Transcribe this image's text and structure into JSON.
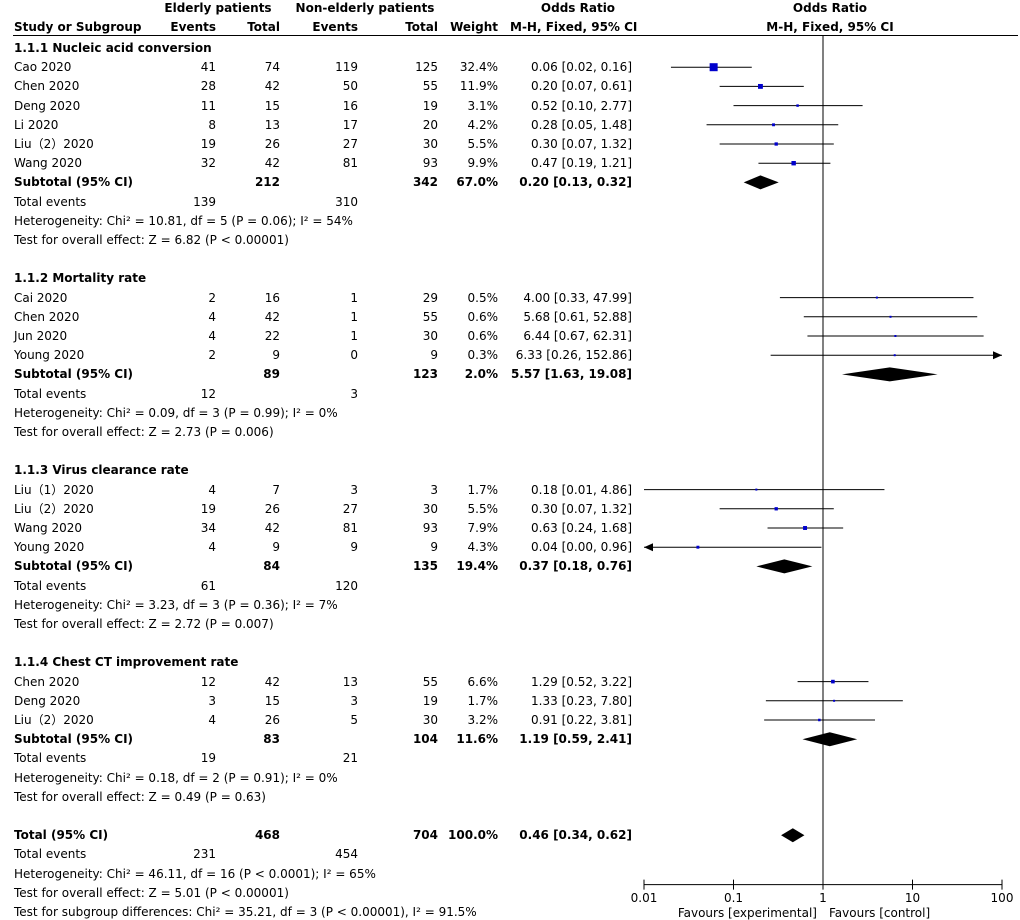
{
  "headers": {
    "study": "Study or Subgroup",
    "group1": "Elderly patients",
    "group2": "Non-elderly patients",
    "events": "Events",
    "total": "Total",
    "weight": "Weight",
    "or_title": "Odds Ratio",
    "or_method": "M-H, Fixed, 95% CI"
  },
  "chart_data": {
    "type": "forest",
    "scale": "log",
    "xlim": [
      0.01,
      100
    ],
    "xticks": [
      "0.01",
      "0.1",
      "1",
      "10",
      "100"
    ],
    "xtick_values": [
      0.01,
      0.1,
      1,
      10,
      100
    ],
    "favours_left": "Favours [experimental]",
    "favours_right": "Favours [control]",
    "groups": [
      {
        "title": "1.1.1 Nucleic acid conversion",
        "studies": [
          {
            "name": "Cao 2020",
            "e1": "41",
            "t1": "74",
            "e2": "119",
            "t2": "125",
            "weight": "32.4%",
            "ci_text": "0.06 [0.02, 0.16]",
            "or": 0.06,
            "lo": 0.02,
            "hi": 0.16,
            "w": 32.4
          },
          {
            "name": "Chen 2020",
            "e1": "28",
            "t1": "42",
            "e2": "50",
            "t2": "55",
            "weight": "11.9%",
            "ci_text": "0.20 [0.07, 0.61]",
            "or": 0.2,
            "lo": 0.07,
            "hi": 0.61,
            "w": 11.9
          },
          {
            "name": "Deng 2020",
            "e1": "11",
            "t1": "15",
            "e2": "16",
            "t2": "19",
            "weight": "3.1%",
            "ci_text": "0.52 [0.10, 2.77]",
            "or": 0.52,
            "lo": 0.1,
            "hi": 2.77,
            "w": 3.1
          },
          {
            "name": "Li 2020",
            "e1": "8",
            "t1": "13",
            "e2": "17",
            "t2": "20",
            "weight": "4.2%",
            "ci_text": "0.28 [0.05, 1.48]",
            "or": 0.28,
            "lo": 0.05,
            "hi": 1.48,
            "w": 4.2
          },
          {
            "name": "Liu（2）2020",
            "e1": "19",
            "t1": "26",
            "e2": "27",
            "t2": "30",
            "weight": "5.5%",
            "ci_text": "0.30 [0.07, 1.32]",
            "or": 0.3,
            "lo": 0.07,
            "hi": 1.32,
            "w": 5.5
          },
          {
            "name": "Wang 2020",
            "e1": "32",
            "t1": "42",
            "e2": "81",
            "t2": "93",
            "weight": "9.9%",
            "ci_text": "0.47 [0.19, 1.21]",
            "or": 0.47,
            "lo": 0.19,
            "hi": 1.21,
            "w": 9.9
          }
        ],
        "subtotal": {
          "label": "Subtotal (95% CI)",
          "t1": "212",
          "t2": "342",
          "weight": "67.0%",
          "ci_text": "0.20 [0.13, 0.32]",
          "or": 0.2,
          "lo": 0.13,
          "hi": 0.32
        },
        "events_label": "Total events",
        "events1": "139",
        "events2": "310",
        "heterogeneity": "Heterogeneity: Chi² = 10.81, df = 5 (P = 0.06); I² = 54%",
        "overall": "Test for overall effect: Z = 6.82 (P < 0.00001)"
      },
      {
        "title": "1.1.2 Mortality rate",
        "studies": [
          {
            "name": "Cai 2020",
            "e1": "2",
            "t1": "16",
            "e2": "1",
            "t2": "29",
            "weight": "0.5%",
            "ci_text": "4.00 [0.33, 47.99]",
            "or": 4.0,
            "lo": 0.33,
            "hi": 47.99,
            "w": 0.5
          },
          {
            "name": "Chen 2020",
            "e1": "4",
            "t1": "42",
            "e2": "1",
            "t2": "55",
            "weight": "0.6%",
            "ci_text": "5.68 [0.61, 52.88]",
            "or": 5.68,
            "lo": 0.61,
            "hi": 52.88,
            "w": 0.6
          },
          {
            "name": "Jun 2020",
            "e1": "4",
            "t1": "22",
            "e2": "1",
            "t2": "30",
            "weight": "0.6%",
            "ci_text": "6.44 [0.67, 62.31]",
            "or": 6.44,
            "lo": 0.67,
            "hi": 62.31,
            "w": 0.6
          },
          {
            "name": "Young 2020",
            "e1": "2",
            "t1": "9",
            "e2": "0",
            "t2": "9",
            "weight": "0.3%",
            "ci_text": "6.33 [0.26, 152.86]",
            "or": 6.33,
            "lo": 0.26,
            "hi": 152.86,
            "w": 0.3
          }
        ],
        "subtotal": {
          "label": "Subtotal (95% CI)",
          "t1": "89",
          "t2": "123",
          "weight": "2.0%",
          "ci_text": "5.57 [1.63, 19.08]",
          "or": 5.57,
          "lo": 1.63,
          "hi": 19.08
        },
        "events_label": "Total events",
        "events1": "12",
        "events2": "3",
        "heterogeneity": "Heterogeneity: Chi² = 0.09, df = 3 (P = 0.99); I² = 0%",
        "overall": "Test for overall effect: Z = 2.73 (P = 0.006)"
      },
      {
        "title": "1.1.3 Virus clearance rate",
        "studies": [
          {
            "name": "Liu（1）2020",
            "e1": "4",
            "t1": "7",
            "e2": "3",
            "t2": "3",
            "weight": "1.7%",
            "ci_text": "0.18 [0.01, 4.86]",
            "or": 0.18,
            "lo": 0.01,
            "hi": 4.86,
            "w": 1.7
          },
          {
            "name": "Liu（2）2020",
            "e1": "19",
            "t1": "26",
            "e2": "27",
            "t2": "30",
            "weight": "5.5%",
            "ci_text": "0.30 [0.07, 1.32]",
            "or": 0.3,
            "lo": 0.07,
            "hi": 1.32,
            "w": 5.5
          },
          {
            "name": "Wang 2020",
            "e1": "34",
            "t1": "42",
            "e2": "81",
            "t2": "93",
            "weight": "7.9%",
            "ci_text": "0.63 [0.24, 1.68]",
            "or": 0.63,
            "lo": 0.24,
            "hi": 1.68,
            "w": 7.9
          },
          {
            "name": "Young 2020",
            "e1": "4",
            "t1": "9",
            "e2": "9",
            "t2": "9",
            "weight": "4.3%",
            "ci_text": "0.04 [0.00, 0.96]",
            "or": 0.04,
            "lo": 0.001,
            "hi": 0.96,
            "w": 4.3
          }
        ],
        "subtotal": {
          "label": "Subtotal (95% CI)",
          "t1": "84",
          "t2": "135",
          "weight": "19.4%",
          "ci_text": "0.37 [0.18, 0.76]",
          "or": 0.37,
          "lo": 0.18,
          "hi": 0.76
        },
        "events_label": "Total events",
        "events1": "61",
        "events2": "120",
        "heterogeneity": "Heterogeneity: Chi² = 3.23, df = 3 (P = 0.36); I² = 7%",
        "overall": "Test for overall effect: Z = 2.72 (P = 0.007)"
      },
      {
        "title": "1.1.4 Chest CT improvement rate",
        "studies": [
          {
            "name": "Chen 2020",
            "e1": "12",
            "t1": "42",
            "e2": "13",
            "t2": "55",
            "weight": "6.6%",
            "ci_text": "1.29 [0.52, 3.22]",
            "or": 1.29,
            "lo": 0.52,
            "hi": 3.22,
            "w": 6.6
          },
          {
            "name": "Deng 2020",
            "e1": "3",
            "t1": "15",
            "e2": "3",
            "t2": "19",
            "weight": "1.7%",
            "ci_text": "1.33 [0.23, 7.80]",
            "or": 1.33,
            "lo": 0.23,
            "hi": 7.8,
            "w": 1.7
          },
          {
            "name": "Liu（2）2020",
            "e1": "4",
            "t1": "26",
            "e2": "5",
            "t2": "30",
            "weight": "3.2%",
            "ci_text": "0.91 [0.22, 3.81]",
            "or": 0.91,
            "lo": 0.22,
            "hi": 3.81,
            "w": 3.2
          }
        ],
        "subtotal": {
          "label": "Subtotal (95% CI)",
          "t1": "83",
          "t2": "104",
          "weight": "11.6%",
          "ci_text": "1.19 [0.59, 2.41]",
          "or": 1.19,
          "lo": 0.59,
          "hi": 2.41
        },
        "events_label": "Total events",
        "events1": "19",
        "events2": "21",
        "heterogeneity": "Heterogeneity: Chi² = 0.18, df = 2 (P = 0.91); I² = 0%",
        "overall": "Test for overall effect: Z = 0.49 (P = 0.63)"
      }
    ],
    "total": {
      "label": "Total (95% CI)",
      "t1": "468",
      "t2": "704",
      "weight": "100.0%",
      "ci_text": "0.46 [0.34, 0.62]",
      "or": 0.46,
      "lo": 0.34,
      "hi": 0.62
    },
    "total_events_label": "Total events",
    "total_events1": "231",
    "total_events2": "454",
    "total_heterogeneity": "Heterogeneity: Chi² = 46.11, df = 16 (P < 0.0001); I² = 65%",
    "total_overall": "Test for overall effect: Z = 5.01 (P < 0.00001)",
    "subgroup_differences": "Test for subgroup differences: Chi² = 35.21, df = 3 (P < 0.00001), I² = 91.5%"
  },
  "colors": {
    "marker": "#0000cc",
    "line": "#000000",
    "diamond": "#000000"
  }
}
